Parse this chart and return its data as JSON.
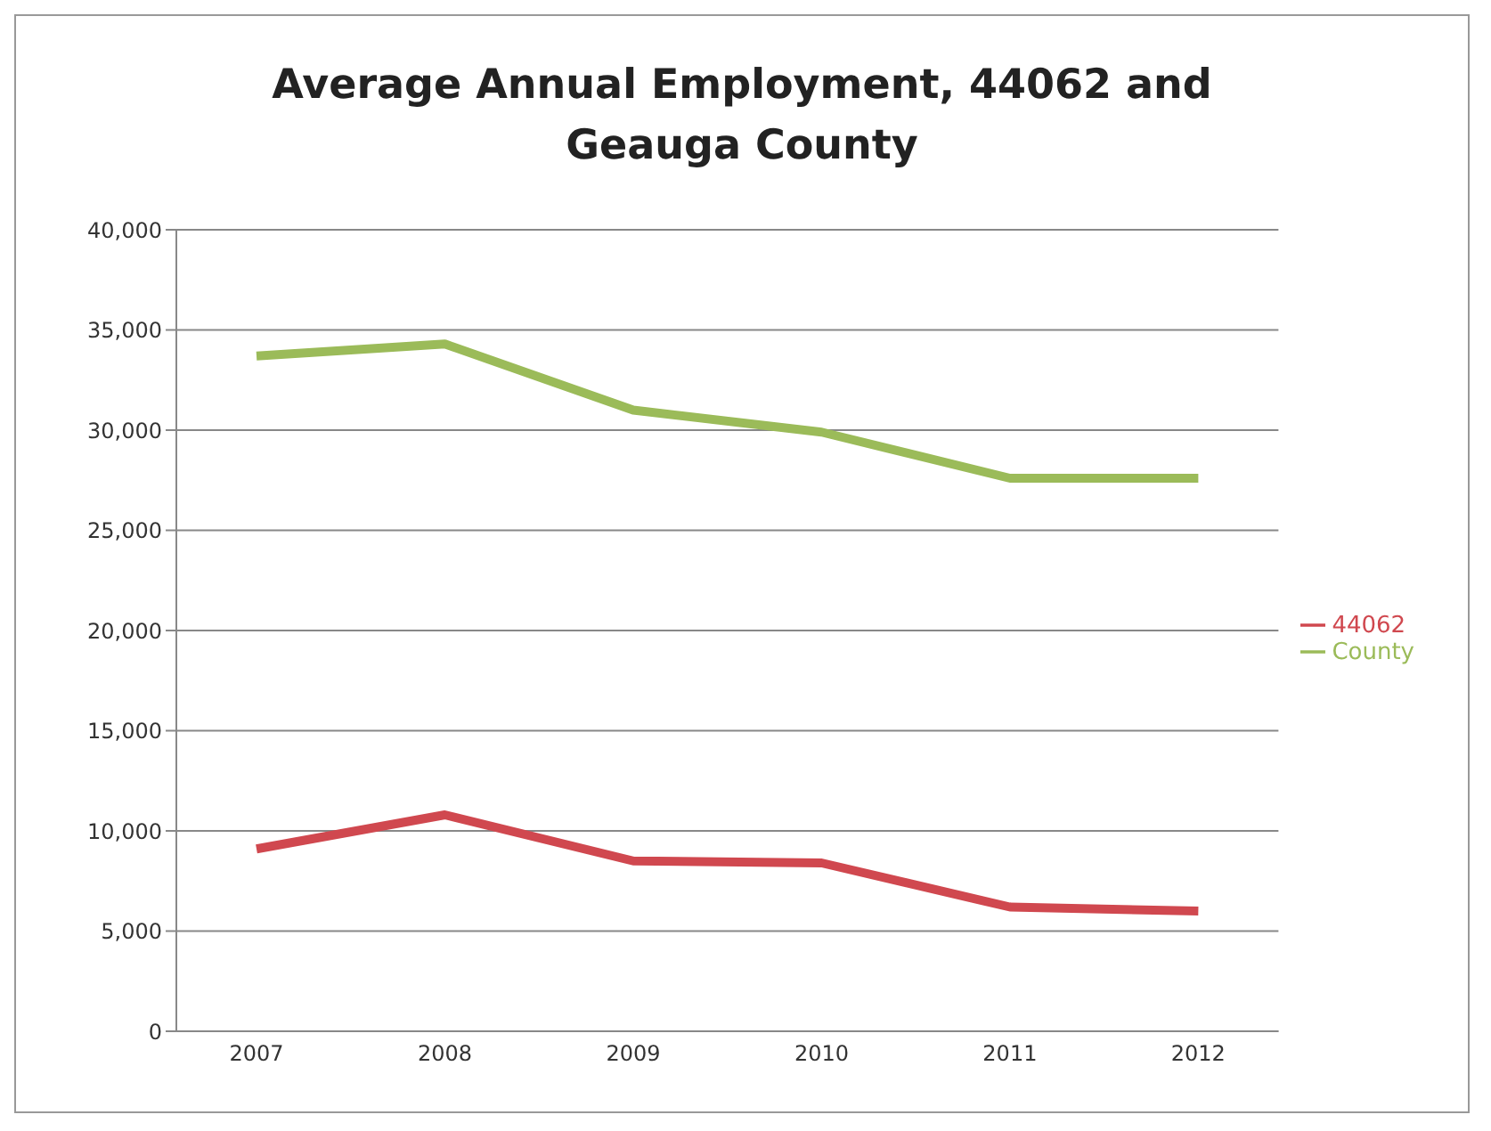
{
  "chart_data": {
    "type": "line",
    "title": "Average Annual Employment, 44062 and Geauga County",
    "categories": [
      "2007",
      "2008",
      "2009",
      "2010",
      "2011",
      "2012"
    ],
    "series": [
      {
        "name": "44062",
        "color": "#d0484f",
        "values": [
          9100,
          10800,
          8500,
          8400,
          6200,
          6000
        ]
      },
      {
        "name": "County",
        "color": "#9bbb59",
        "values": [
          33700,
          34300,
          31000,
          29900,
          27600,
          27600
        ]
      }
    ],
    "ylim": [
      0,
      40000
    ],
    "yticks": [
      0,
      {
        "value": 5000,
        "label": "5,000"
      },
      {
        "value": 10000,
        "label": "10,000"
      },
      {
        "value": 15000,
        "label": "15,000"
      },
      {
        "value": 20000,
        "label": "20,000"
      },
      {
        "value": 25000,
        "label": "25,000"
      },
      {
        "value": 30000,
        "label": "30,000"
      },
      {
        "value": 35000,
        "label": "35,000"
      },
      {
        "value": 40000,
        "label": "40,000"
      }
    ],
    "grid": "y",
    "legend": "right",
    "marker": "none",
    "line_style": "solid"
  }
}
